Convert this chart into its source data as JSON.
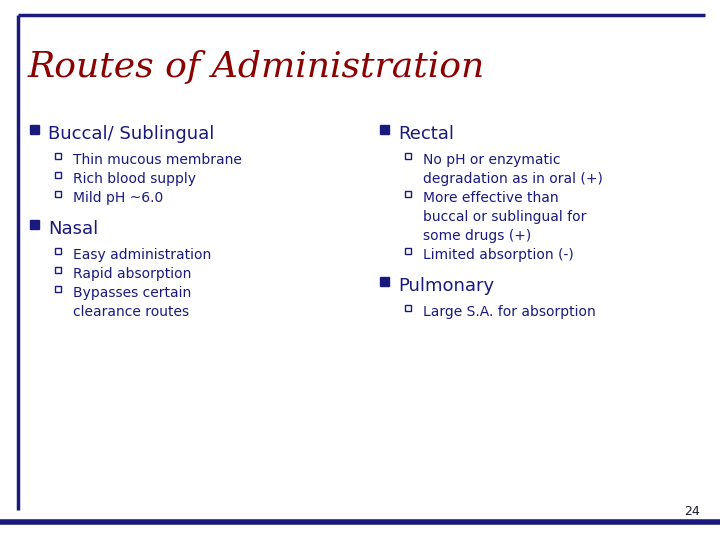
{
  "title": "Routes of Administration",
  "title_color": "#8B0000",
  "title_fontsize": 26,
  "body_color": "#1a1a7e",
  "background_color": "#ffffff",
  "border_color": "#1a1a7e",
  "page_number": "24",
  "figsize": [
    7.2,
    5.4
  ],
  "dpi": 100,
  "left_column": {
    "sections": [
      {
        "header": "Buccal/ Sublingual",
        "items": [
          "Thin mucous membrane",
          "Rich blood supply",
          "Mild pH ~6.0"
        ]
      },
      {
        "header": "Nasal",
        "items": [
          "Easy administration",
          "Rapid absorption",
          "Bypasses certain\nclearance routes"
        ]
      }
    ]
  },
  "right_column": {
    "sections": [
      {
        "header": "Rectal",
        "items": [
          "No pH or enzymatic\ndegradation as in oral (+)",
          "More effective than\nbuccal or sublingual for\nsome drugs (+)",
          "Limited absorption (-)"
        ]
      },
      {
        "header": "Pulmonary",
        "items": [
          "Large S.A. for absorption"
        ]
      }
    ]
  }
}
